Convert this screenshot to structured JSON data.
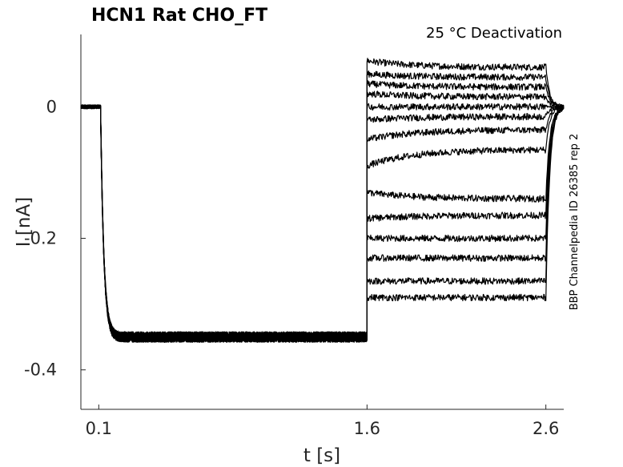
{
  "chart_data": {
    "type": "line",
    "title": "HCN1  Rat  CHO_FT",
    "subtitle": "25 °C  Deactivation",
    "side_note": "BBP Channelpedia ID 26385 rep 2",
    "xlabel": "t [s]",
    "ylabel": "I [nA]",
    "xlim": [
      0.0,
      2.7
    ],
    "ylim": [
      -0.46,
      0.11
    ],
    "xticks": [
      0.1,
      1.6,
      2.6
    ],
    "xtick_labels": [
      "0.1",
      "1.6",
      "2.6"
    ],
    "yticks": [
      0,
      -0.2,
      -0.4
    ],
    "ytick_labels": [
      "0",
      "-0.2",
      "-0.4"
    ],
    "grid": false,
    "protocol": {
      "holding_end": 0.11,
      "prepulse_end": 1.6,
      "test_end": 2.6,
      "tail_end": 2.7,
      "holding_level": 0.0,
      "prepulse_level": -0.35,
      "prepulse_tau": 0.018
    },
    "series": [
      {
        "start": 0.07,
        "end": 0.06
      },
      {
        "start": 0.05,
        "end": 0.045
      },
      {
        "start": 0.035,
        "end": 0.03
      },
      {
        "start": 0.02,
        "end": 0.015
      },
      {
        "start": -0.0,
        "end": 0.0
      },
      {
        "start": -0.02,
        "end": -0.015
      },
      {
        "start": -0.05,
        "end": -0.035
      },
      {
        "start": -0.09,
        "end": -0.065
      },
      {
        "start": -0.13,
        "end": -0.14
      },
      {
        "start": -0.17,
        "end": -0.165
      },
      {
        "start": -0.2,
        "end": -0.2
      },
      {
        "start": -0.23,
        "end": -0.23
      },
      {
        "start": -0.265,
        "end": -0.265
      },
      {
        "start": -0.29,
        "end": -0.29
      }
    ]
  }
}
